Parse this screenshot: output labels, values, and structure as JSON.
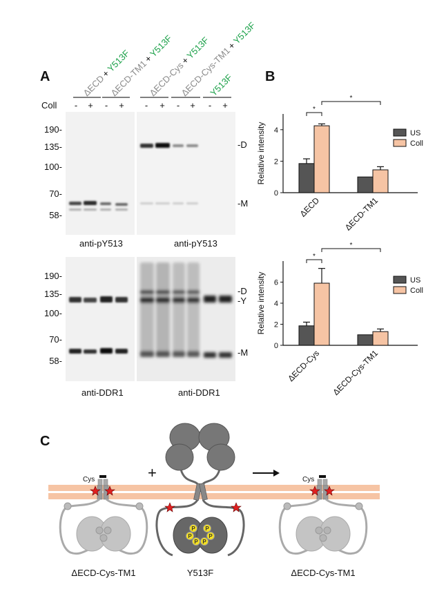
{
  "panel_a": {
    "label": "A",
    "row_label": "Coll",
    "lane_signs": [
      "-",
      "+",
      "-",
      "+",
      "-",
      "+",
      "-",
      "+",
      "-",
      "+"
    ],
    "lane_headers": [
      {
        "construct": "ΔECD",
        "plus": "+",
        "mutant": "Y513F"
      },
      {
        "construct": "ΔECD-TM1",
        "plus": "+",
        "mutant": "Y513F"
      },
      {
        "construct": "ΔECD-Cys",
        "plus": "+",
        "mutant": "Y513F"
      },
      {
        "construct": "ΔECD-Cys-TM1",
        "plus": "+",
        "mutant": "Y513F"
      },
      {
        "construct": "",
        "plus": "",
        "mutant": "Y513F"
      }
    ],
    "mw_markers_top": [
      "190-",
      "135-",
      "100-",
      "70-",
      "58-"
    ],
    "mw_markers_bottom": [
      "190-",
      "135-",
      "100-",
      "70-",
      "58-"
    ],
    "band_labels_top": [
      "-D",
      "-M"
    ],
    "band_labels_bottom": [
      "-D",
      "-Y",
      "-M"
    ],
    "blot_captions": [
      "anti-pY513",
      "anti-pY513",
      "anti-DDR1",
      "anti-DDR1"
    ]
  },
  "panel_b": {
    "label": "B",
    "legend": [
      "US",
      "Coll"
    ],
    "colors": {
      "US": "#555555",
      "Coll": "#f6c4a4"
    },
    "significance_mark": "*"
  },
  "chart_data": [
    {
      "type": "bar",
      "categories": [
        "ΔECD",
        "ΔECD-TM1"
      ],
      "series": [
        {
          "name": "US",
          "values": [
            1.85,
            1.0
          ],
          "errors": [
            0.3,
            0
          ]
        },
        {
          "name": "Coll",
          "values": [
            4.25,
            1.45
          ],
          "errors": [
            0.12,
            0.2
          ]
        }
      ],
      "ylabel": "Relative intensity",
      "ylim": [
        0,
        5
      ],
      "yticks": [
        "0",
        "2",
        "4"
      ],
      "legend": "top-right",
      "significance": [
        "*",
        "*"
      ]
    },
    {
      "type": "bar",
      "categories": [
        "ΔECD-Cys",
        "ΔECD-Cys-TM1"
      ],
      "series": [
        {
          "name": "US",
          "values": [
            1.85,
            1.0
          ],
          "errors": [
            0.35,
            0
          ]
        },
        {
          "name": "Coll",
          "values": [
            5.9,
            1.3
          ],
          "errors": [
            1.4,
            0.25
          ]
        }
      ],
      "ylabel": "Relative intensity",
      "ylim": [
        0,
        8
      ],
      "yticks": [
        "0",
        "2",
        "4",
        "6"
      ],
      "legend": "top-right",
      "significance": [
        "*",
        "*"
      ]
    }
  ],
  "panel_c": {
    "label": "C",
    "plus_sign": "+",
    "cys_label_left": "Cys",
    "cys_label_right": "Cys",
    "phospho_label": "P",
    "captions": [
      "ΔECD-Cys-TM1",
      "Y513F",
      "ΔECD-Cys-TM1"
    ]
  }
}
